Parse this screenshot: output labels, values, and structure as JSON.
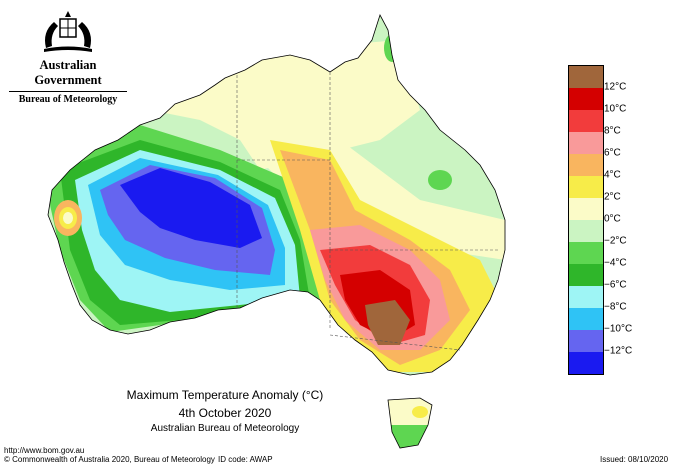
{
  "logo": {
    "government": "Australian Government",
    "bureau": "Bureau of Meteorology"
  },
  "caption": {
    "title": "Maximum Temperature Anomaly (°C)",
    "date": "4th October 2020",
    "source": "Australian Bureau of Meteorology"
  },
  "footer": {
    "url": "http://www.bom.gov.au",
    "copyright": "© Commonwealth of Australia 2020, Bureau of Meteorology",
    "id_code": "ID code: AWAP",
    "issued": "Issued: 08/10/2020"
  },
  "legend": {
    "colors": [
      "#a0663b",
      "#d40000",
      "#f23c3c",
      "#f99a9a",
      "#f9b55f",
      "#f7ec49",
      "#fbfbc8",
      "#cbf4c2",
      "#5ed651",
      "#2fb62a",
      "#9ef5f5",
      "#2fc3f5",
      "#6565f0",
      "#1a1af0"
    ],
    "labels": [
      "12°C",
      "10°C",
      "8°C",
      "6°C",
      "4°C",
      "2°C",
      "0°C",
      "−2°C",
      "−4°C",
      "−6°C",
      "−8°C",
      "−10°C",
      "−12°C"
    ]
  },
  "map_colors": {
    "ocean": "#ffffff",
    "outline": "#000000"
  }
}
